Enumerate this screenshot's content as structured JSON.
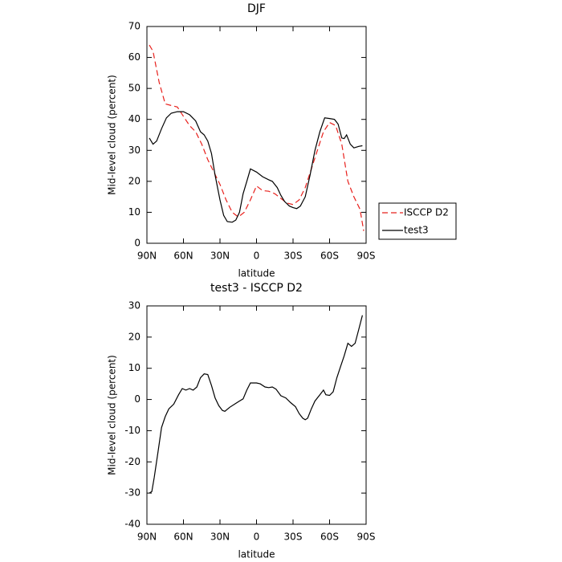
{
  "chart_data": [
    {
      "type": "line",
      "title": "DJF",
      "x_label": "latitude",
      "y_label": "Mid-level cloud (percent)",
      "xlim": [
        90,
        -90
      ],
      "xticks": [
        {
          "value": 90,
          "label": "90N"
        },
        {
          "value": 60,
          "label": "60N"
        },
        {
          "value": 30,
          "label": "30N"
        },
        0,
        {
          "value": -30,
          "label": "30S"
        },
        {
          "value": -60,
          "label": "60S"
        },
        {
          "value": -90,
          "label": "90S"
        }
      ],
      "ylim": [
        0,
        70
      ],
      "yticks": [
        0,
        10,
        20,
        30,
        40,
        50,
        60,
        70
      ],
      "legend": "right",
      "series": [
        {
          "name": "ISCCP D2",
          "color": "#e8201c",
          "linestyle": "dashed",
          "x": [
            88,
            85,
            80,
            75,
            70,
            65,
            60,
            55,
            50,
            45,
            40,
            35,
            30,
            25,
            20,
            15,
            10,
            5,
            0,
            -5,
            -10,
            -15,
            -20,
            -25,
            -30,
            -35,
            -40,
            -45,
            -50,
            -55,
            -60,
            -65,
            -70,
            -75,
            -80,
            -85,
            -88
          ],
          "values": [
            64,
            62,
            52,
            45,
            44.5,
            44,
            41,
            38,
            36,
            32,
            27,
            23,
            19,
            14,
            10,
            8.5,
            10,
            14,
            18.5,
            17,
            16.8,
            16,
            14.5,
            13,
            12.5,
            14,
            18,
            24,
            30,
            36,
            39,
            38,
            32,
            20,
            15,
            11,
            4
          ]
        },
        {
          "name": "test3",
          "color": "#000000",
          "linestyle": "solid",
          "x": [
            88,
            85,
            82,
            78,
            74,
            70,
            65,
            60,
            55,
            50,
            46,
            43,
            40,
            37,
            34,
            30,
            27,
            24,
            20,
            17,
            14,
            11,
            8,
            5,
            0,
            -5,
            -10,
            -13,
            -17,
            -20,
            -23,
            -27,
            -30,
            -33,
            -36,
            -40,
            -44,
            -48,
            -52,
            -56,
            -60,
            -64,
            -67,
            -70,
            -72,
            -74,
            -77,
            -80,
            -84,
            -87
          ],
          "values": [
            34,
            32,
            33,
            37,
            40.5,
            42,
            42.5,
            42.5,
            41.5,
            39.5,
            36,
            35,
            33,
            29,
            22,
            14,
            9,
            7,
            6.8,
            7.5,
            10,
            16,
            20,
            24,
            23,
            21.5,
            20.5,
            20,
            18,
            15.5,
            13.5,
            12,
            11.5,
            11.2,
            12,
            15,
            22,
            30,
            36,
            40.5,
            40.3,
            40,
            38.5,
            34,
            33.8,
            35,
            32,
            30.8,
            31.3,
            31.5
          ]
        }
      ]
    },
    {
      "type": "line",
      "title": "test3 - ISCCP D2",
      "x_label": "latitude",
      "y_label": "Mid-level cloud (percent)",
      "xlim": [
        90,
        -90
      ],
      "xticks": [
        {
          "value": 90,
          "label": "90N"
        },
        {
          "value": 60,
          "label": "60N"
        },
        {
          "value": 30,
          "label": "30N"
        },
        0,
        {
          "value": -30,
          "label": "30S"
        },
        {
          "value": -60,
          "label": "60S"
        },
        {
          "value": -90,
          "label": "90S"
        }
      ],
      "ylim": [
        -40,
        30
      ],
      "yticks": [
        -40,
        -30,
        -20,
        -10,
        0,
        10,
        20,
        30
      ],
      "series": [
        {
          "color": "#000000",
          "linestyle": "solid",
          "x": [
            88,
            86,
            84,
            81,
            78,
            75,
            72,
            68,
            64,
            61,
            58,
            55,
            52,
            49,
            46,
            43,
            40,
            37,
            34,
            31,
            28,
            26,
            22,
            18,
            14,
            11,
            8,
            5,
            0,
            -3,
            -7,
            -10,
            -13,
            -16,
            -20,
            -24,
            -28,
            -32,
            -35,
            -38,
            -40,
            -42,
            -45,
            -48,
            -52,
            -55,
            -57,
            -60,
            -63,
            -66,
            -69,
            -72,
            -75,
            -78,
            -81,
            -84,
            -87
          ],
          "values": [
            -30,
            -29.5,
            -25,
            -17,
            -9,
            -5.5,
            -3,
            -1.5,
            1.5,
            3.5,
            3,
            3.5,
            3,
            4,
            7,
            8.2,
            8,
            4.5,
            0.5,
            -2,
            -3.5,
            -3.8,
            -2.5,
            -1.5,
            -0.5,
            0.2,
            3,
            5.3,
            5.3,
            5,
            4,
            3.8,
            4,
            3.3,
            1.2,
            0.5,
            -1,
            -2.3,
            -4.5,
            -6,
            -6.5,
            -6,
            -3,
            -0.5,
            1.5,
            3,
            1.5,
            1.3,
            2.5,
            7,
            10.5,
            14,
            18,
            17,
            18,
            22.5,
            27
          ]
        }
      ]
    }
  ]
}
